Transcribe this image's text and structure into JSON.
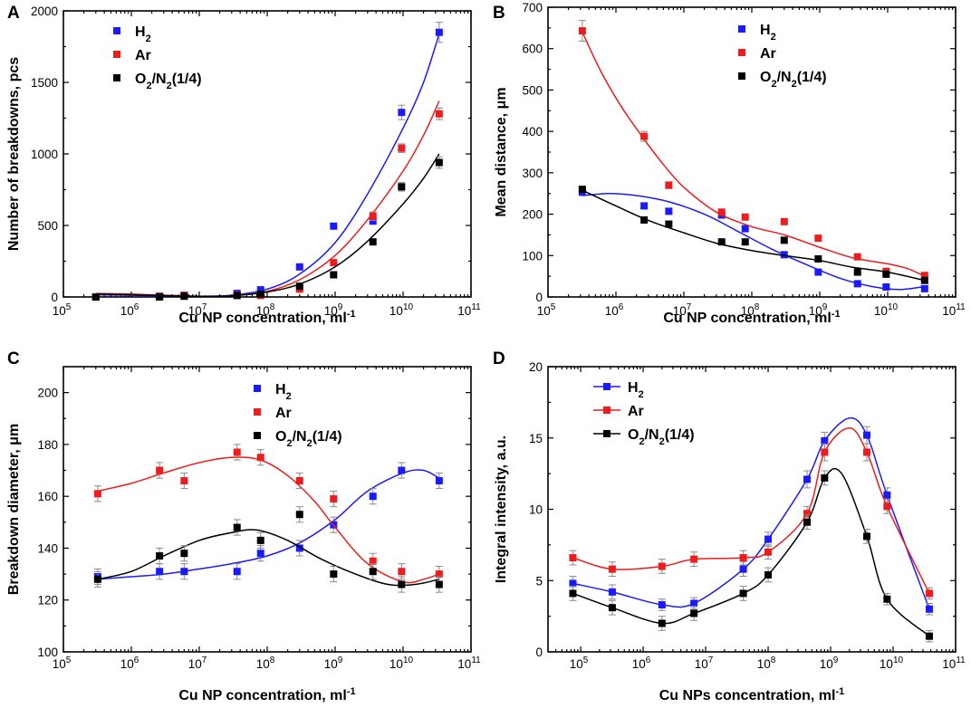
{
  "chart_data": [
    {
      "panel": "A",
      "type": "scatter",
      "xscale": "log",
      "xlabel": "Cu NP concentration, ml",
      "xlabel_sup": "-1",
      "ylabel": "Number of breakdowns, pcs",
      "xlim": [
        100000,
        100000000000
      ],
      "ylim": [
        0,
        2000
      ],
      "yticks": [
        0,
        500,
        1000,
        1500,
        2000
      ],
      "xticks": [
        {
          "base": "10",
          "exp": "5"
        },
        {
          "base": "10",
          "exp": "6"
        },
        {
          "base": "10",
          "exp": "7"
        },
        {
          "base": "10",
          "exp": "8"
        },
        {
          "base": "10",
          "exp": "9"
        },
        {
          "base": "10",
          "exp": "10"
        },
        {
          "base": "10",
          "exp": "11"
        }
      ],
      "legend_position": "top-left",
      "legend_style": "markers",
      "series": [
        {
          "name": "H",
          "sub": "2",
          "suffix": "",
          "color": "#1a1aff",
          "x": [
            300000,
            2600000,
            6000000,
            36000000,
            80000000,
            300000000,
            950000000,
            3600000000,
            9500000000,
            34000000000
          ],
          "y": [
            0,
            5,
            12,
            25,
            50,
            210,
            495,
            530,
            1290,
            1850
          ],
          "err": [
            0,
            0,
            0,
            0,
            0,
            0,
            0,
            0,
            50,
            70
          ],
          "fit_x": [
            300000,
            1000000,
            3000000,
            10000000,
            30000000,
            100000000,
            300000000,
            1000000000,
            3000000000,
            10000000000,
            20000000000,
            34000000000
          ],
          "fit_y": [
            15,
            12,
            8,
            5,
            12,
            55,
            160,
            380,
            720,
            1180,
            1500,
            1840
          ]
        },
        {
          "name": "Ar",
          "sub": "",
          "suffix": "",
          "color": "#ee1c1c",
          "x": [
            300000,
            2600000,
            6000000,
            36000000,
            80000000,
            300000000,
            950000000,
            3600000000,
            9500000000,
            34000000000
          ],
          "y": [
            0,
            5,
            10,
            15,
            10,
            55,
            240,
            565,
            1040,
            1280
          ],
          "err": [
            0,
            0,
            0,
            0,
            0,
            0,
            0,
            30,
            30,
            40
          ],
          "fit_x": [
            300000,
            1000000,
            3000000,
            10000000,
            30000000,
            100000000,
            300000000,
            1000000000,
            3000000000,
            10000000000,
            20000000000,
            34000000000
          ],
          "fit_y": [
            25,
            20,
            12,
            5,
            8,
            40,
            120,
            290,
            540,
            880,
            1130,
            1370
          ]
        },
        {
          "name": "O",
          "sub": "2",
          "suffix": "/N|2|(1/4)",
          "color": "#000000",
          "x": [
            300000,
            2600000,
            6000000,
            36000000,
            80000000,
            300000000,
            950000000,
            3600000000,
            9500000000,
            34000000000
          ],
          "y": [
            0,
            0,
            5,
            10,
            20,
            75,
            155,
            385,
            770,
            940
          ],
          "err": [
            0,
            0,
            0,
            0,
            0,
            0,
            0,
            0,
            30,
            40
          ],
          "fit_x": [
            300000,
            1000000,
            3000000,
            10000000,
            30000000,
            100000000,
            300000000,
            1000000000,
            3000000000,
            10000000000,
            20000000000,
            34000000000
          ],
          "fit_y": [
            20,
            16,
            10,
            5,
            8,
            35,
            90,
            210,
            390,
            650,
            830,
            1000
          ]
        }
      ]
    },
    {
      "panel": "B",
      "type": "scatter",
      "xscale": "log",
      "xlabel": "Cu NP concentration, ml",
      "xlabel_sup": "-1",
      "ylabel": "Mean distance, μm",
      "xlim": [
        100000,
        100000000000
      ],
      "ylim": [
        0,
        700
      ],
      "yticks": [
        0,
        100,
        200,
        300,
        400,
        500,
        600,
        700
      ],
      "xticks": [
        {
          "base": "10",
          "exp": "5"
        },
        {
          "base": "10",
          "exp": "6"
        },
        {
          "base": "10",
          "exp": "7"
        },
        {
          "base": "10",
          "exp": "8"
        },
        {
          "base": "10",
          "exp": "9"
        },
        {
          "base": "10",
          "exp": "10"
        },
        {
          "base": "10",
          "exp": "11"
        }
      ],
      "legend_position": "top-right",
      "legend_style": "markers",
      "series": [
        {
          "name": "H",
          "sub": "2",
          "suffix": "",
          "color": "#1a1aff",
          "x": [
            320000,
            2600000,
            6000000,
            36000000,
            80000000,
            300000000,
            950000000,
            3600000000,
            9500000000,
            35000000000
          ],
          "y": [
            253,
            220,
            207,
            198,
            165,
            102,
            60,
            32,
            24,
            20
          ],
          "err": [
            6,
            0,
            0,
            0,
            0,
            0,
            0,
            0,
            0,
            0
          ],
          "fit_x": [
            320000,
            800000,
            2000000,
            6000000,
            20000000,
            60000000,
            200000000,
            600000000,
            2000000000,
            6000000000,
            15000000000,
            35000000000
          ],
          "fit_y": [
            245,
            250,
            245,
            230,
            200,
            160,
            115,
            80,
            45,
            25,
            18,
            25
          ]
        },
        {
          "name": "Ar",
          "sub": "",
          "suffix": "",
          "color": "#ee1c1c",
          "x": [
            320000,
            2600000,
            6000000,
            36000000,
            80000000,
            300000000,
            950000000,
            3600000000,
            9500000000,
            35000000000
          ],
          "y": [
            643,
            388,
            270,
            205,
            193,
            182,
            142,
            97,
            62,
            52
          ],
          "err": [
            25,
            12,
            8,
            0,
            0,
            0,
            0,
            0,
            0,
            0
          ],
          "fit_x": [
            320000,
            600000,
            1200000,
            2500000,
            5000000,
            10000000,
            30000000,
            100000000,
            300000000,
            1000000000,
            3000000000,
            10000000000,
            20000000000,
            35000000000
          ],
          "fit_y": [
            640,
            545,
            460,
            385,
            320,
            265,
            205,
            170,
            150,
            120,
            95,
            80,
            68,
            50
          ]
        },
        {
          "name": "O",
          "sub": "2",
          "suffix": "/N|2|(1/4)",
          "color": "#000000",
          "x": [
            320000,
            2600000,
            6000000,
            36000000,
            80000000,
            300000000,
            950000000,
            3600000000,
            9500000000,
            35000000000
          ],
          "y": [
            260,
            186,
            176,
            133,
            133,
            137,
            92,
            60,
            55,
            40
          ],
          "err": [
            0,
            0,
            0,
            0,
            0,
            0,
            0,
            0,
            0,
            0
          ],
          "fit_x": [
            320000,
            1000000,
            3000000,
            10000000,
            30000000,
            100000000,
            300000000,
            1000000000,
            3000000000,
            10000000000,
            35000000000
          ],
          "fit_y": [
            258,
            220,
            185,
            155,
            130,
            112,
            100,
            88,
            72,
            60,
            40
          ]
        }
      ]
    },
    {
      "panel": "C",
      "type": "scatter",
      "xscale": "log",
      "xlabel": "Cu NP concentration, ml",
      "xlabel_sup": "-1",
      "ylabel": "Breakdown diameter, μm",
      "xlim": [
        100000,
        100000000000
      ],
      "ylim": [
        100,
        210
      ],
      "yticks": [
        100,
        120,
        140,
        160,
        180,
        200
      ],
      "xticks": [
        {
          "base": "10",
          "exp": "5"
        },
        {
          "base": "10",
          "exp": "6"
        },
        {
          "base": "10",
          "exp": "7"
        },
        {
          "base": "10",
          "exp": "8"
        },
        {
          "base": "10",
          "exp": "9"
        },
        {
          "base": "10",
          "exp": "10"
        },
        {
          "base": "10",
          "exp": "11"
        }
      ],
      "legend_position": "top-right",
      "legend_style": "markers",
      "series": [
        {
          "name": "H",
          "sub": "2",
          "suffix": "",
          "color": "#1a1aff",
          "x": [
            320000,
            2600000,
            6000000,
            36000000,
            80000000,
            300000000,
            950000000,
            3600000000,
            9500000000,
            34000000000
          ],
          "y": [
            129,
            131,
            131,
            131,
            138,
            140,
            149,
            160,
            170,
            166
          ],
          "err": [
            3,
            3,
            3,
            3,
            3,
            3,
            3,
            3,
            3,
            3
          ],
          "fit_x": [
            320000,
            1000000,
            3000000,
            10000000,
            30000000,
            100000000,
            300000000,
            1000000000,
            3000000000,
            10000000000,
            20000000000,
            34000000000
          ],
          "fit_y": [
            128,
            129,
            130,
            132,
            134,
            137,
            142,
            151,
            162,
            169,
            170,
            167
          ]
        },
        {
          "name": "Ar",
          "sub": "",
          "suffix": "",
          "color": "#ee1c1c",
          "x": [
            320000,
            2600000,
            6000000,
            36000000,
            80000000,
            300000000,
            950000000,
            3600000000,
            9500000000,
            34000000000
          ],
          "y": [
            161,
            170,
            166,
            177,
            175,
            166,
            159,
            135,
            131,
            130
          ],
          "err": [
            3,
            3,
            3,
            3,
            3,
            3,
            3,
            3,
            3,
            3
          ],
          "fit_x": [
            320000,
            1000000,
            3000000,
            10000000,
            30000000,
            80000000,
            200000000,
            500000000,
            1000000000,
            3000000000,
            10000000000,
            20000000000,
            34000000000
          ],
          "fit_y": [
            162,
            165,
            169,
            173,
            175,
            174,
            168,
            158,
            148,
            134,
            127,
            128,
            130
          ]
        },
        {
          "name": "O",
          "sub": "2",
          "suffix": "/N|2|(1/4)",
          "color": "#000000",
          "x": [
            320000,
            2600000,
            6000000,
            36000000,
            80000000,
            300000000,
            950000000,
            3600000000,
            9500000000,
            34000000000
          ],
          "y": [
            128,
            137,
            138,
            148,
            143,
            153,
            130,
            131,
            126,
            126
          ],
          "err": [
            3,
            3,
            3,
            3,
            3,
            3,
            3,
            3,
            3,
            3
          ],
          "fit_x": [
            320000,
            1000000,
            3000000,
            10000000,
            30000000,
            70000000,
            200000000,
            600000000,
            2000000000,
            6000000000,
            15000000000,
            34000000000
          ],
          "fit_y": [
            128,
            131,
            137,
            143,
            146,
            147,
            143,
            136,
            130,
            126,
            126,
            128
          ]
        }
      ]
    },
    {
      "panel": "D",
      "type": "line",
      "xscale": "log",
      "xlabel": "Cu NPs concentration, ml",
      "xlabel_sup": "-1",
      "ylabel": "Integral intensity, a.u.",
      "xlim": [
        30000,
        100000000000
      ],
      "ylim": [
        0,
        20
      ],
      "yticks": [
        0,
        5,
        10,
        15,
        20
      ],
      "xticks": [
        {
          "base": "10",
          "exp": "5"
        },
        {
          "base": "10",
          "exp": "6"
        },
        {
          "base": "10",
          "exp": "7"
        },
        {
          "base": "10",
          "exp": "8"
        },
        {
          "base": "10",
          "exp": "9"
        },
        {
          "base": "10",
          "exp": "10"
        },
        {
          "base": "10",
          "exp": "11"
        }
      ],
      "legend_position": "top-left",
      "legend_style": "lines",
      "series": [
        {
          "name": "H",
          "sub": "2",
          "suffix": "",
          "color": "#1a1aff",
          "x": [
            75000,
            320000,
            2000000,
            6500000,
            40000000,
            100000000,
            420000000,
            800000000,
            3800000000,
            8000000000,
            38000000000
          ],
          "y": [
            4.8,
            4.2,
            3.3,
            3.4,
            5.8,
            7.9,
            12.1,
            14.8,
            15.2,
            11.0,
            3.0
          ],
          "err": [
            0.5,
            0.5,
            0.4,
            0.4,
            0.5,
            0.5,
            0.6,
            0.6,
            0.6,
            0.5,
            0.4
          ],
          "fit_x": [
            75000,
            320000,
            2000000,
            6500000,
            40000000,
            100000000,
            420000000,
            800000000,
            2000000000,
            3800000000,
            8000000000,
            38000000000
          ],
          "fit_y": [
            4.8,
            4.2,
            3.3,
            3.4,
            5.8,
            7.9,
            12.1,
            14.8,
            16.4,
            15.2,
            11.0,
            3.0
          ]
        },
        {
          "name": "Ar",
          "sub": "",
          "suffix": "",
          "color": "#ee1c1c",
          "x": [
            75000,
            320000,
            2000000,
            6500000,
            40000000,
            100000000,
            420000000,
            800000000,
            3800000000,
            8000000000,
            38000000000
          ],
          "y": [
            6.6,
            5.8,
            6.0,
            6.5,
            6.6,
            7.0,
            9.7,
            14.0,
            14.0,
            10.2,
            4.1
          ],
          "err": [
            0.5,
            0.5,
            0.5,
            0.5,
            0.5,
            0.5,
            0.5,
            0.6,
            0.6,
            0.5,
            0.4
          ],
          "fit_x": [
            75000,
            320000,
            2000000,
            6500000,
            40000000,
            100000000,
            420000000,
            800000000,
            2000000000,
            3800000000,
            8000000000,
            38000000000
          ],
          "fit_y": [
            6.6,
            5.8,
            6.0,
            6.5,
            6.6,
            7.0,
            9.7,
            14.0,
            15.7,
            14.0,
            10.2,
            4.1
          ]
        },
        {
          "name": "O",
          "sub": "2",
          "suffix": "/N|2|(1/4)",
          "color": "#000000",
          "x": [
            75000,
            320000,
            2000000,
            6500000,
            40000000,
            100000000,
            420000000,
            800000000,
            3800000000,
            8000000000,
            38000000000
          ],
          "y": [
            4.1,
            3.1,
            2.0,
            2.7,
            4.1,
            5.4,
            9.1,
            12.2,
            8.1,
            3.7,
            1.1
          ],
          "err": [
            0.5,
            0.5,
            0.5,
            0.5,
            0.5,
            0.5,
            0.5,
            0.5,
            0.5,
            0.4,
            0.4
          ],
          "fit_x": [
            75000,
            320000,
            2000000,
            6500000,
            40000000,
            100000000,
            420000000,
            800000000,
            1500000000,
            3800000000,
            8000000000,
            38000000000
          ],
          "fit_y": [
            4.1,
            3.1,
            2.0,
            2.7,
            4.1,
            5.4,
            9.1,
            12.2,
            12.5,
            8.1,
            3.7,
            1.1
          ]
        }
      ]
    }
  ]
}
